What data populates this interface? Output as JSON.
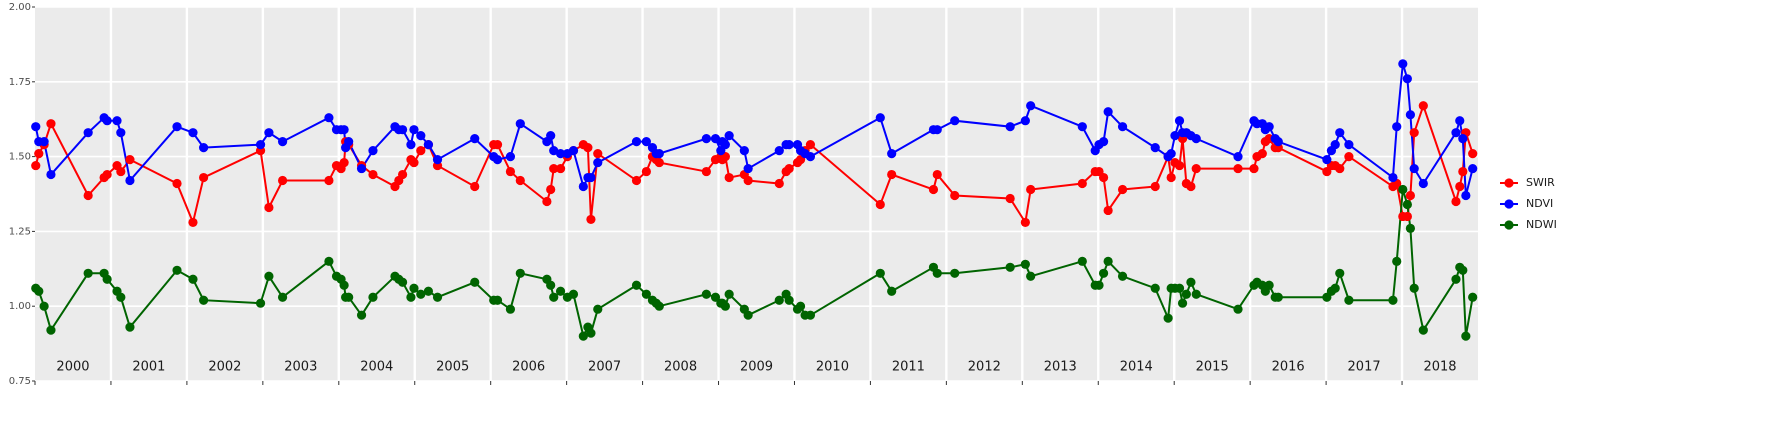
{
  "chart_data": {
    "type": "line",
    "x": [
      2000.01,
      2000.05,
      2000.12,
      2000.21,
      2000.7,
      2000.91,
      2000.95,
      2001.08,
      2001.13,
      2001.25,
      2001.87,
      2002.08,
      2002.22,
      2002.97,
      2003.08,
      2003.26,
      2003.87,
      2003.97,
      2004.03,
      2004.07,
      2004.09,
      2004.13,
      2004.3,
      2004.45,
      2004.74,
      2004.79,
      2004.84,
      2004.95,
      2004.99,
      2005.08,
      2005.18,
      2005.3,
      2005.79,
      2006.04,
      2006.09,
      2006.26,
      2006.39,
      2006.74,
      2006.79,
      2006.83,
      2006.92,
      2007.01,
      2007.09,
      2007.22,
      2007.28,
      2007.32,
      2007.41,
      2007.92,
      2008.05,
      2008.13,
      2008.18,
      2008.22,
      2008.84,
      2008.96,
      2009.03,
      2009.05,
      2009.09,
      2009.14,
      2009.34,
      2009.39,
      2009.8,
      2009.89,
      2009.93,
      2010.04,
      2010.08,
      2010.14,
      2010.21,
      2011.13,
      2011.28,
      2011.83,
      2011.88,
      2012.11,
      2012.84,
      2013.04,
      2013.11,
      2013.79,
      2013.96,
      2014.01,
      2014.07,
      2014.13,
      2014.32,
      2014.75,
      2014.92,
      2014.96,
      2015.01,
      2015.07,
      2015.11,
      2015.16,
      2015.22,
      2015.29,
      2015.84,
      2016.05,
      2016.09,
      2016.16,
      2016.2,
      2016.25,
      2016.33,
      2016.37,
      2017.01,
      2017.07,
      2017.12,
      2017.18,
      2017.3,
      2017.88,
      2017.93,
      2018.01,
      2018.07,
      2018.11,
      2018.16,
      2018.28,
      2018.71,
      2018.76,
      2018.8,
      2018.84,
      2018.93
    ],
    "series": [
      {
        "name": "SWIR",
        "color": "#ff0000",
        "values": [
          1.47,
          1.51,
          1.54,
          1.61,
          1.37,
          1.43,
          1.44,
          1.47,
          1.45,
          1.49,
          1.41,
          1.28,
          1.43,
          1.52,
          1.33,
          1.42,
          1.42,
          1.47,
          1.46,
          1.48,
          1.55,
          1.54,
          1.47,
          1.44,
          1.4,
          1.42,
          1.44,
          1.49,
          1.48,
          1.52,
          1.54,
          1.47,
          1.4,
          1.54,
          1.54,
          1.45,
          1.42,
          1.35,
          1.39,
          1.46,
          1.46,
          1.5,
          1.52,
          1.54,
          1.53,
          1.29,
          1.51,
          1.42,
          1.45,
          1.5,
          1.49,
          1.48,
          1.45,
          1.49,
          1.5,
          1.49,
          1.5,
          1.43,
          1.44,
          1.42,
          1.41,
          1.45,
          1.46,
          1.48,
          1.49,
          1.52,
          1.54,
          1.34,
          1.44,
          1.39,
          1.44,
          1.37,
          1.36,
          1.28,
          1.39,
          1.41,
          1.45,
          1.45,
          1.43,
          1.32,
          1.39,
          1.4,
          1.5,
          1.43,
          1.48,
          1.47,
          1.56,
          1.41,
          1.4,
          1.46,
          1.46,
          1.46,
          1.5,
          1.51,
          1.55,
          1.56,
          1.53,
          1.53,
          1.45,
          1.47,
          1.47,
          1.46,
          1.5,
          1.4,
          1.41,
          1.3,
          1.3,
          1.37,
          1.58,
          1.67,
          1.35,
          1.4,
          1.45,
          1.58,
          1.51
        ]
      },
      {
        "name": "NDVI",
        "color": "#0000ff",
        "values": [
          1.6,
          1.55,
          1.55,
          1.44,
          1.58,
          1.63,
          1.62,
          1.62,
          1.58,
          1.42,
          1.6,
          1.58,
          1.53,
          1.54,
          1.58,
          1.55,
          1.63,
          1.59,
          1.59,
          1.59,
          1.53,
          1.55,
          1.46,
          1.52,
          1.6,
          1.59,
          1.59,
          1.54,
          1.59,
          1.57,
          1.54,
          1.49,
          1.56,
          1.5,
          1.49,
          1.5,
          1.61,
          1.55,
          1.57,
          1.52,
          1.51,
          1.51,
          1.52,
          1.4,
          1.43,
          1.43,
          1.48,
          1.55,
          1.55,
          1.53,
          1.51,
          1.51,
          1.56,
          1.56,
          1.52,
          1.55,
          1.54,
          1.57,
          1.52,
          1.46,
          1.52,
          1.54,
          1.54,
          1.54,
          1.52,
          1.51,
          1.5,
          1.63,
          1.51,
          1.59,
          1.59,
          1.62,
          1.6,
          1.62,
          1.67,
          1.6,
          1.52,
          1.54,
          1.55,
          1.65,
          1.6,
          1.53,
          1.5,
          1.51,
          1.57,
          1.62,
          1.58,
          1.58,
          1.57,
          1.56,
          1.5,
          1.62,
          1.61,
          1.61,
          1.59,
          1.6,
          1.56,
          1.55,
          1.49,
          1.52,
          1.54,
          1.58,
          1.54,
          1.43,
          1.6,
          1.81,
          1.76,
          1.64,
          1.46,
          1.41,
          1.58,
          1.62,
          1.56,
          1.37,
          1.46
        ]
      },
      {
        "name": "NDWI",
        "color": "#006400",
        "values": [
          1.06,
          1.05,
          1.0,
          0.92,
          1.11,
          1.11,
          1.09,
          1.05,
          1.03,
          0.93,
          1.12,
          1.09,
          1.02,
          1.01,
          1.1,
          1.03,
          1.15,
          1.1,
          1.09,
          1.07,
          1.03,
          1.03,
          0.97,
          1.03,
          1.1,
          1.09,
          1.08,
          1.03,
          1.06,
          1.04,
          1.05,
          1.03,
          1.08,
          1.02,
          1.02,
          0.99,
          1.11,
          1.09,
          1.07,
          1.03,
          1.05,
          1.03,
          1.04,
          0.9,
          0.93,
          0.91,
          0.99,
          1.07,
          1.04,
          1.02,
          1.01,
          1.0,
          1.04,
          1.03,
          1.01,
          1.01,
          1.0,
          1.04,
          0.99,
          0.97,
          1.02,
          1.04,
          1.02,
          0.99,
          1.0,
          0.97,
          0.97,
          1.11,
          1.05,
          1.13,
          1.11,
          1.11,
          1.13,
          1.14,
          1.1,
          1.15,
          1.07,
          1.07,
          1.11,
          1.15,
          1.1,
          1.06,
          0.96,
          1.06,
          1.06,
          1.06,
          1.01,
          1.04,
          1.08,
          1.04,
          0.99,
          1.07,
          1.08,
          1.07,
          1.05,
          1.07,
          1.03,
          1.03,
          1.03,
          1.05,
          1.06,
          1.11,
          1.02,
          1.02,
          1.15,
          1.39,
          1.34,
          1.26,
          1.06,
          0.92,
          1.09,
          1.13,
          1.12,
          0.9,
          1.03
        ]
      }
    ],
    "xlim": [
      2000,
      2019
    ],
    "xticks": [
      2000,
      2001,
      2002,
      2003,
      2004,
      2005,
      2006,
      2007,
      2008,
      2009,
      2010,
      2011,
      2012,
      2013,
      2014,
      2015,
      2016,
      2017,
      2018
    ],
    "ylim": [
      0.75,
      2.0
    ],
    "yticks": [
      {
        "value": 0.75,
        "label": "0.75"
      },
      {
        "value": 1.0,
        "label": "1.00"
      },
      {
        "value": 1.25,
        "label": "1.25"
      },
      {
        "value": 1.5,
        "label": "1.50"
      },
      {
        "value": 1.75,
        "label": "1.75"
      },
      {
        "value": 2.0,
        "label": "2.00"
      }
    ],
    "grid": true,
    "legend": "right"
  }
}
